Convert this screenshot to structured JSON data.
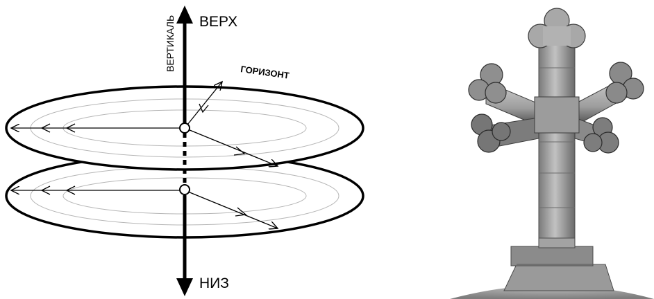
{
  "diagram": {
    "labels": {
      "up": "ВЕРХ",
      "down": "НИЗ",
      "vertical": "ВЕРТИКАЛЬ",
      "horizon": "ГОРИЗОНТ"
    },
    "planes": 2,
    "colors": {
      "ink": "#000000",
      "guide": "#b5b5b5"
    }
  },
  "photo": {
    "subject": "cross-on-dome",
    "colors": {
      "stone_light": "#b9b9b9",
      "stone_mid": "#8a8a8a",
      "stone_dark": "#3f3f3f",
      "dome": "#9a9a9a"
    }
  }
}
